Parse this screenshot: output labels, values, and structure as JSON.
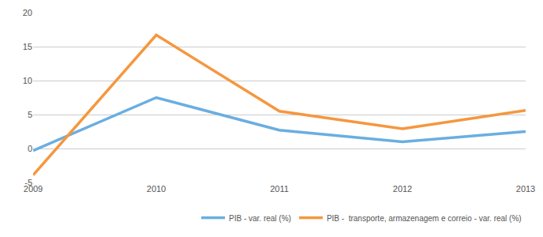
{
  "chart_data": {
    "type": "line",
    "categories": [
      "2009",
      "2010",
      "2011",
      "2012",
      "2013"
    ],
    "series": [
      {
        "name": "PIB - var. real (%)",
        "color": "#6aaee0",
        "values": [
          -0.3,
          7.5,
          2.7,
          1.0,
          2.5
        ]
      },
      {
        "name": "PIB -  transporte, armazenagem e correio - var. real (%)",
        "color": "#f5973f",
        "values": [
          -3.9,
          16.7,
          5.5,
          2.9,
          5.6
        ]
      }
    ],
    "ylim": [
      -5,
      20
    ],
    "yticks": [
      -5,
      0,
      5,
      10,
      15,
      20
    ],
    "grid": true,
    "legend": "bottom right"
  }
}
